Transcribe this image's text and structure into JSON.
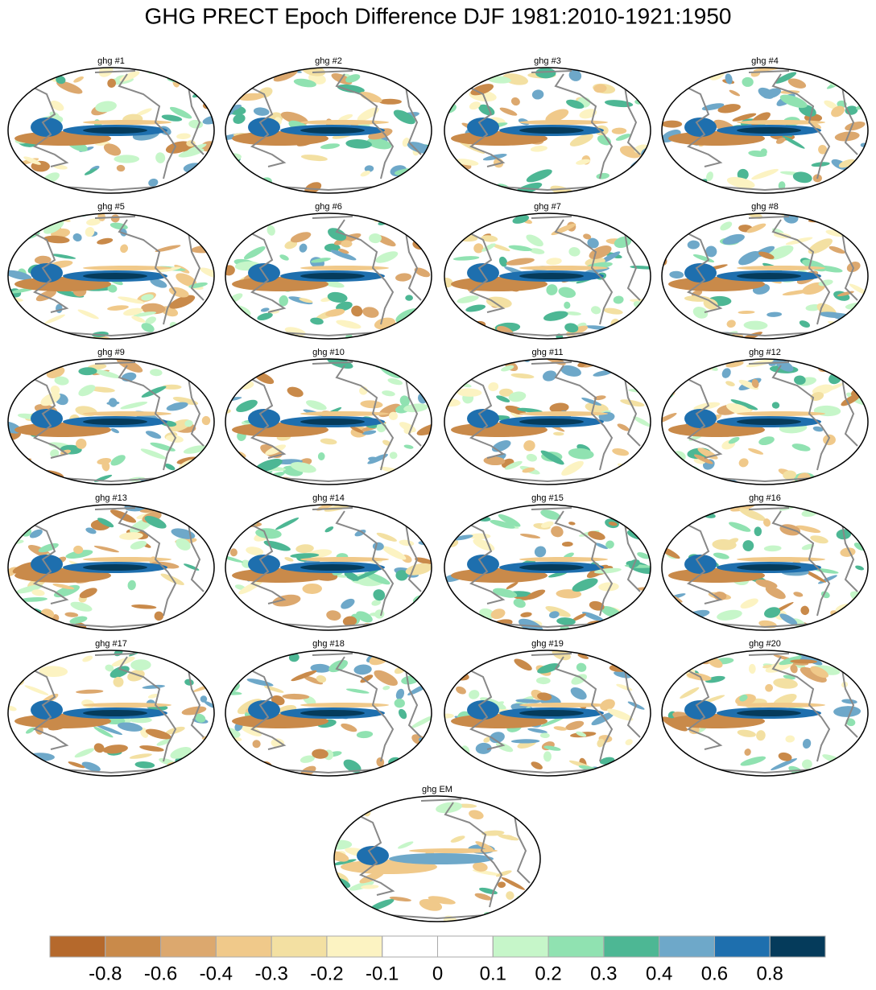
{
  "title": "GHG PRECT Epoch Difference DJF 1981:2010-1921:1950",
  "panels": [
    "ghg #1",
    "ghg #2",
    "ghg #3",
    "ghg #4",
    "ghg #5",
    "ghg #6",
    "ghg #7",
    "ghg #8",
    "ghg #9",
    "ghg #10",
    "ghg #11",
    "ghg #12",
    "ghg #13",
    "ghg #14",
    "ghg #15",
    "ghg #16",
    "ghg #17",
    "ghg #18",
    "ghg #19",
    "ghg #20",
    "ghg EM"
  ],
  "colorbar": {
    "levels": [
      -0.8,
      -0.6,
      -0.4,
      -0.3,
      -0.2,
      -0.1,
      0,
      0.1,
      0.2,
      0.3,
      0.4,
      0.6,
      0.8
    ],
    "colors": [
      "#b5692c",
      "#c98a4a",
      "#dca86e",
      "#f0c98a",
      "#f3e0a2",
      "#fcf3c2",
      "#ffffff",
      "#ffffff",
      "#c6f6c9",
      "#90e2b1",
      "#4db794",
      "#6ea8c9",
      "#1e6fae",
      "#053b5b"
    ]
  }
}
